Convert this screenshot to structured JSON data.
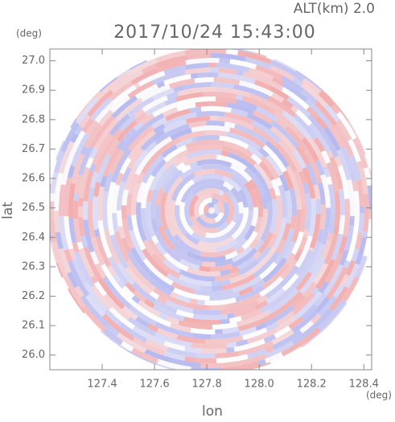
{
  "chart_data": {
    "type": "heatmap",
    "title": "2017/10/24 15:43:00",
    "subtitle": "ALT(km) 2.0",
    "x_label": "lon",
    "y_label": "lat",
    "x_unit": "(deg)",
    "y_unit": "(deg)",
    "xlim": [
      127.2,
      128.43
    ],
    "ylim": [
      25.95,
      27.04
    ],
    "xticks": [
      127.4,
      127.6,
      127.8,
      {
        "value": 128.0,
        "label": "128.0"
      },
      128.2,
      128.4
    ],
    "yticks": [
      {
        "value": 26.0,
        "label": "26.0"
      },
      26.1,
      26.2,
      26.3,
      26.4,
      26.5,
      26.6,
      26.7,
      26.8,
      26.9,
      {
        "value": 27.0,
        "label": "27.0"
      }
    ]
  }
}
